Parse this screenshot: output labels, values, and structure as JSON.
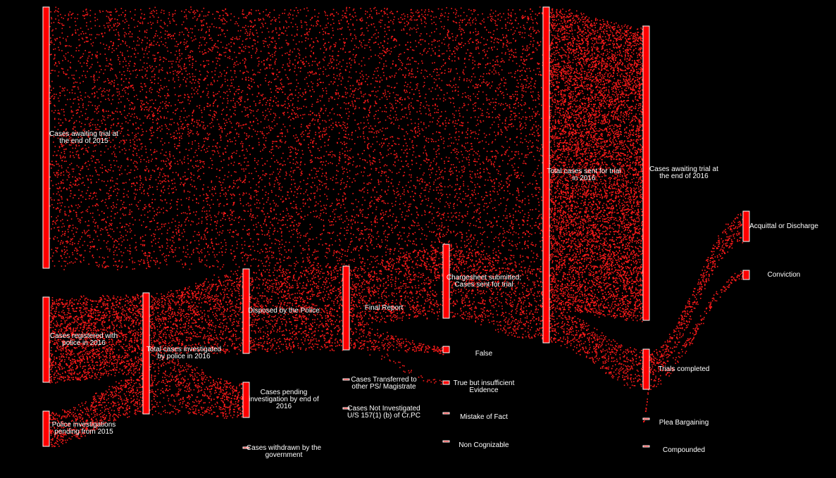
{
  "nodes": [
    {
      "label": "Cases awaiting trial at the end of 2015"
    },
    {
      "label": "Cases registered with police in 2016"
    },
    {
      "label": "Police investigations pending from 2015"
    },
    {
      "label": "Total cases investigated by police in 2016"
    },
    {
      "label": "Disposed by the Police"
    },
    {
      "label": "Cases pending investigation by end of 2016"
    },
    {
      "label": "Cases withdrawn by the government"
    },
    {
      "label": "Final Report"
    },
    {
      "label": "Cases Transferred to other PS/ Magistrate"
    },
    {
      "label": "Cases Not Investigated U/S 157(1) (b) of Cr.PC"
    },
    {
      "label": "Chargesheet submitted; Cases sent for trial"
    },
    {
      "label": "False"
    },
    {
      "label": "True but insufficient Evidence"
    },
    {
      "label": "Mistake of Fact"
    },
    {
      "label": "Non Cognizable"
    },
    {
      "label": "Total cases sent for trial in 2016"
    },
    {
      "label": "Cases awaiting trial at the end of 2016"
    },
    {
      "label": "Trials completed"
    },
    {
      "label": "Plea Bargaining"
    },
    {
      "label": "Compounded"
    },
    {
      "label": "Acquittal or Discharge"
    },
    {
      "label": "Conviction"
    }
  ]
}
